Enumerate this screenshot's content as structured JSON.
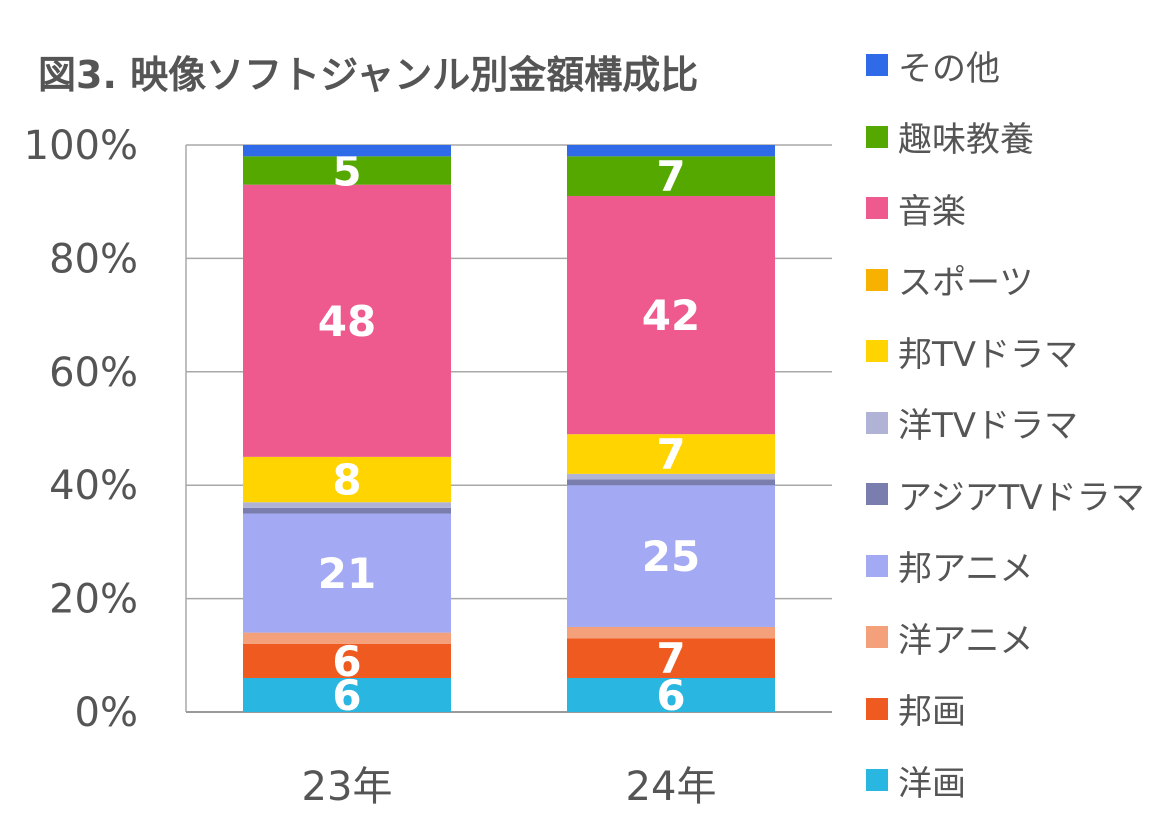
{
  "chart_data": {
    "type": "bar",
    "stacked": true,
    "percent": true,
    "title": "図3. 映像ソフトジャンル別金額構成比",
    "categories": [
      "23年",
      "24年"
    ],
    "ylim": [
      0,
      100
    ],
    "yticks": [
      "0%",
      "20%",
      "40%",
      "60%",
      "80%",
      "100%"
    ],
    "grid": true,
    "legend_position": "right",
    "series": [
      {
        "name": "洋画",
        "color": "#29B6E0",
        "values": [
          6,
          6
        ],
        "labels": [
          "6",
          "6"
        ]
      },
      {
        "name": "邦画",
        "color": "#EE5A1F",
        "values": [
          6,
          7
        ],
        "labels": [
          "6",
          "7"
        ]
      },
      {
        "name": "洋アニメ",
        "color": "#F4A07A",
        "values": [
          2,
          2
        ],
        "labels": [
          "",
          ""
        ]
      },
      {
        "name": "邦アニメ",
        "color": "#A3A9F3",
        "values": [
          21,
          25
        ],
        "labels": [
          "21",
          "25"
        ]
      },
      {
        "name": "アジアTVドラマ",
        "color": "#7A7EAE",
        "values": [
          1,
          1
        ],
        "labels": [
          "",
          ""
        ]
      },
      {
        "name": "洋TVドラマ",
        "color": "#B0B3D6",
        "values": [
          1,
          1
        ],
        "labels": [
          "",
          ""
        ]
      },
      {
        "name": "邦TVドラマ",
        "color": "#FFD400",
        "values": [
          8,
          7
        ],
        "labels": [
          "8",
          "7"
        ]
      },
      {
        "name": "スポーツ",
        "color": "#F7B100",
        "values": [
          0,
          0
        ],
        "labels": [
          "",
          ""
        ]
      },
      {
        "name": "音楽",
        "color": "#EE5A8E",
        "values": [
          48,
          42
        ],
        "labels": [
          "48",
          "42"
        ]
      },
      {
        "name": "趣味教養",
        "color": "#55A800",
        "values": [
          5,
          7
        ],
        "labels": [
          "5",
          "7"
        ]
      },
      {
        "name": "その他",
        "color": "#2F6BE8",
        "values": [
          2,
          2
        ],
        "labels": [
          "",
          ""
        ]
      }
    ],
    "legend_order": [
      "その他",
      "趣味教養",
      "音楽",
      "スポーツ",
      "邦TVドラマ",
      "洋TVドラマ",
      "アジアTVドラマ",
      "邦アニメ",
      "洋アニメ",
      "邦画",
      "洋画"
    ]
  }
}
